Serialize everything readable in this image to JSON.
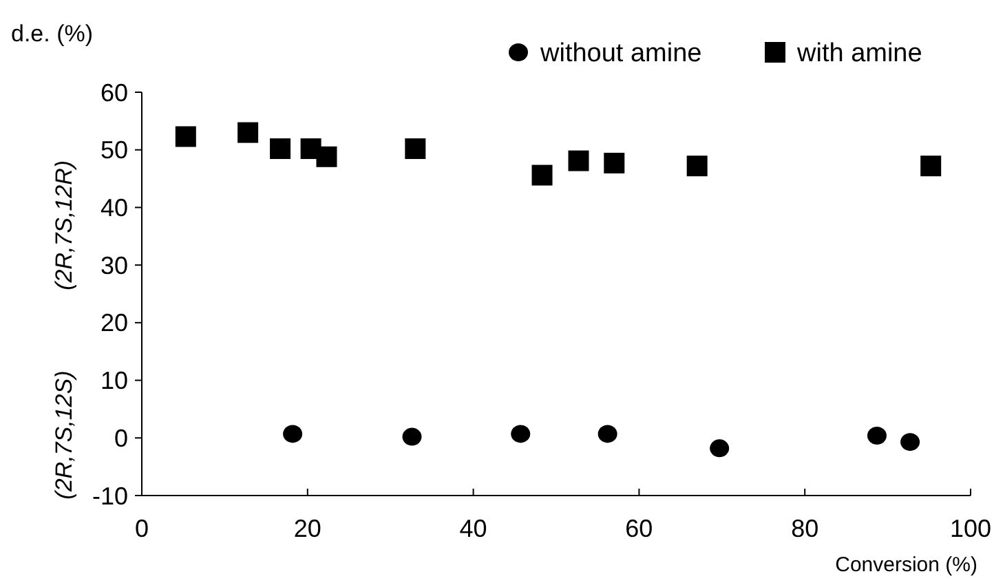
{
  "chart_data": {
    "type": "scatter",
    "ylabel": "d.e. (%)",
    "xlabel": "Conversion (%)",
    "annotations": [
      "(2R,7S,12R)",
      "(2R,7S,12S)"
    ],
    "xlim": [
      0,
      100
    ],
    "xticks": [
      0,
      20,
      40,
      60,
      80,
      100
    ],
    "ylim": [
      -10,
      60
    ],
    "yticks": [
      -10,
      0,
      10,
      20,
      30,
      40,
      50,
      60
    ],
    "grid": false,
    "legend": "top right",
    "series": [
      {
        "name": "without amine",
        "color": "#000000",
        "marker": "circle",
        "x": [
          18.2,
          32.6,
          45.7,
          56.2,
          69.7,
          88.7,
          92.7
        ],
        "values": [
          0.7,
          0.2,
          0.7,
          0.7,
          -1.8,
          0.4,
          -0.7
        ]
      },
      {
        "name": "with amine",
        "color": "#000000",
        "marker": "square",
        "x": [
          5.3,
          12.8,
          16.7,
          20.4,
          22.3,
          33.0,
          48.3,
          52.7,
          57.0,
          67.0,
          95.2
        ],
        "values": [
          52.3,
          53.0,
          50.2,
          50.2,
          48.8,
          50.2,
          45.6,
          48.1,
          47.7,
          47.2,
          47.2
        ]
      }
    ]
  }
}
